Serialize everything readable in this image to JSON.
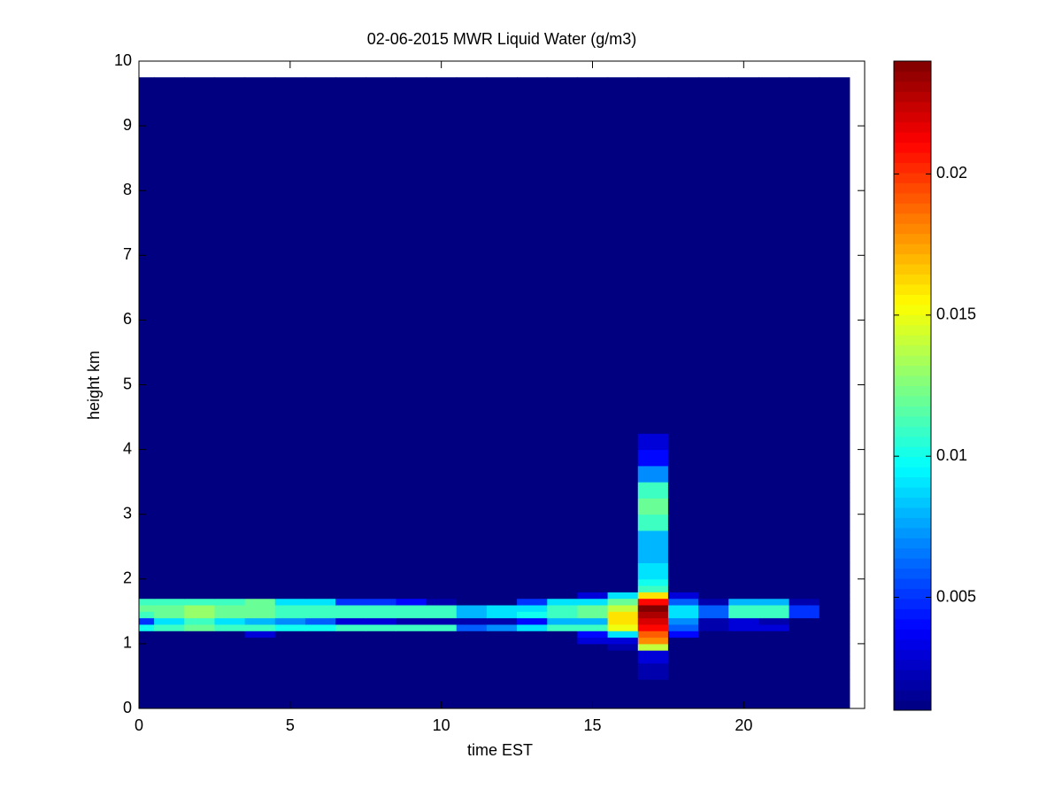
{
  "chart_data": {
    "type": "heatmap",
    "title": "02-06-2015 MWR Liquid Water (g/m3)",
    "xlabel": "time EST",
    "ylabel": "height km",
    "xlim": [
      0,
      24
    ],
    "ylim": [
      0,
      10
    ],
    "xticks": [
      0,
      5,
      10,
      15,
      20
    ],
    "yticks": [
      0,
      1,
      2,
      3,
      4,
      5,
      6,
      7,
      8,
      9,
      10
    ],
    "x": [
      0,
      0.5,
      1.5,
      2.5,
      3.5,
      4.5,
      5.5,
      6.5,
      7.5,
      8.5,
      9.5,
      10.5,
      11.5,
      12.5,
      13.5,
      14.5,
      15.5,
      16.5,
      17.5,
      18.5,
      19.5,
      20.5,
      21.5,
      22.5,
      23.5
    ],
    "y": [
      0,
      0.45,
      0.6,
      0.7,
      0.8,
      0.9,
      1.0,
      1.1,
      1.2,
      1.3,
      1.4,
      1.5,
      1.6,
      1.7,
      1.8,
      1.9,
      2.0,
      2.25,
      2.5,
      2.75,
      3.0,
      3.25,
      3.5,
      3.75,
      4.0,
      4.25,
      9.75
    ],
    "colormap": "jet",
    "clim": [
      0.001,
      0.024
    ],
    "colorbar_ticks": [
      0.005,
      0.01,
      0.015,
      0.02
    ],
    "z": [
      [
        0.001,
        0.001,
        0.001,
        0.001,
        0.001,
        0.001,
        0.001,
        0.001,
        0.001,
        0.001,
        0.001,
        0.001,
        0.001,
        0.001,
        0.001,
        0.001,
        0.001,
        0.001,
        0.001,
        0.001,
        0.001,
        0.001,
        0.001,
        0.001
      ],
      [
        0.001,
        0.001,
        0.001,
        0.001,
        0.001,
        0.001,
        0.001,
        0.001,
        0.001,
        0.001,
        0.001,
        0.001,
        0.001,
        0.001,
        0.001,
        0.001,
        0.001,
        0.002,
        0.001,
        0.001,
        0.001,
        0.001,
        0.001,
        0.001
      ],
      [
        0.001,
        0.001,
        0.001,
        0.001,
        0.001,
        0.001,
        0.001,
        0.001,
        0.001,
        0.001,
        0.001,
        0.001,
        0.001,
        0.001,
        0.001,
        0.001,
        0.001,
        0.002,
        0.001,
        0.001,
        0.001,
        0.001,
        0.001,
        0.001
      ],
      [
        0.001,
        0.001,
        0.001,
        0.001,
        0.001,
        0.001,
        0.001,
        0.001,
        0.001,
        0.001,
        0.001,
        0.001,
        0.001,
        0.001,
        0.001,
        0.001,
        0.001,
        0.003,
        0.001,
        0.001,
        0.001,
        0.001,
        0.001,
        0.001
      ],
      [
        0.001,
        0.001,
        0.001,
        0.001,
        0.001,
        0.001,
        0.001,
        0.001,
        0.001,
        0.001,
        0.001,
        0.001,
        0.001,
        0.001,
        0.001,
        0.001,
        0.001,
        0.003,
        0.001,
        0.001,
        0.001,
        0.001,
        0.001,
        0.001
      ],
      [
        0.001,
        0.001,
        0.001,
        0.001,
        0.001,
        0.001,
        0.001,
        0.001,
        0.001,
        0.001,
        0.001,
        0.001,
        0.001,
        0.001,
        0.001,
        0.001,
        0.002,
        0.014,
        0.001,
        0.001,
        0.001,
        0.001,
        0.001,
        0.001
      ],
      [
        0.001,
        0.001,
        0.001,
        0.001,
        0.001,
        0.001,
        0.001,
        0.001,
        0.001,
        0.001,
        0.001,
        0.001,
        0.001,
        0.001,
        0.001,
        0.003,
        0.003,
        0.018,
        0.001,
        0.001,
        0.001,
        0.001,
        0.001,
        0.001
      ],
      [
        0.001,
        0.001,
        0.001,
        0.001,
        0.003,
        0.001,
        0.001,
        0.001,
        0.001,
        0.001,
        0.001,
        0.001,
        0.001,
        0.001,
        0.001,
        0.004,
        0.009,
        0.019,
        0.004,
        0.001,
        0.001,
        0.001,
        0.001,
        0.001
      ],
      [
        0.01,
        0.011,
        0.012,
        0.011,
        0.011,
        0.01,
        0.01,
        0.011,
        0.011,
        0.011,
        0.011,
        0.006,
        0.007,
        0.009,
        0.011,
        0.011,
        0.015,
        0.021,
        0.006,
        0.002,
        0.003,
        0.003,
        0.001,
        0.001
      ],
      [
        0.005,
        0.009,
        0.011,
        0.009,
        0.008,
        0.007,
        0.006,
        0.003,
        0.003,
        0.002,
        0.002,
        0.002,
        0.002,
        0.004,
        0.008,
        0.008,
        0.016,
        0.022,
        0.007,
        0.002,
        0.003,
        0.002,
        0.001,
        0.001
      ],
      [
        0.011,
        0.012,
        0.013,
        0.012,
        0.012,
        0.011,
        0.011,
        0.011,
        0.011,
        0.011,
        0.011,
        0.008,
        0.009,
        0.01,
        0.011,
        0.012,
        0.016,
        0.023,
        0.009,
        0.006,
        0.011,
        0.011,
        0.005,
        0.001
      ],
      [
        0.012,
        0.012,
        0.013,
        0.012,
        0.012,
        0.011,
        0.011,
        0.011,
        0.011,
        0.011,
        0.011,
        0.008,
        0.009,
        0.009,
        0.011,
        0.012,
        0.014,
        0.024,
        0.009,
        0.006,
        0.011,
        0.011,
        0.005,
        0.001
      ],
      [
        0.011,
        0.011,
        0.011,
        0.011,
        0.012,
        0.009,
        0.009,
        0.005,
        0.005,
        0.004,
        0.002,
        0.001,
        0.001,
        0.005,
        0.009,
        0.009,
        0.012,
        0.021,
        0.006,
        0.002,
        0.008,
        0.008,
        0.002,
        0.001
      ],
      [
        0.001,
        0.001,
        0.001,
        0.001,
        0.001,
        0.001,
        0.001,
        0.001,
        0.001,
        0.001,
        0.001,
        0.001,
        0.001,
        0.001,
        0.001,
        0.003,
        0.009,
        0.016,
        0.003,
        0.001,
        0.001,
        0.001,
        0.001,
        0.001
      ],
      [
        0.001,
        0.001,
        0.001,
        0.001,
        0.001,
        0.001,
        0.001,
        0.001,
        0.001,
        0.001,
        0.001,
        0.001,
        0.001,
        0.001,
        0.001,
        0.001,
        0.001,
        0.011,
        0.001,
        0.001,
        0.001,
        0.001,
        0.001,
        0.001
      ],
      [
        0.001,
        0.001,
        0.001,
        0.001,
        0.001,
        0.001,
        0.001,
        0.001,
        0.001,
        0.001,
        0.001,
        0.001,
        0.001,
        0.001,
        0.001,
        0.001,
        0.001,
        0.01,
        0.001,
        0.001,
        0.001,
        0.001,
        0.001,
        0.001
      ],
      [
        0.001,
        0.001,
        0.001,
        0.001,
        0.001,
        0.001,
        0.001,
        0.001,
        0.001,
        0.001,
        0.001,
        0.001,
        0.001,
        0.001,
        0.001,
        0.001,
        0.001,
        0.009,
        0.001,
        0.001,
        0.001,
        0.001,
        0.001,
        0.001
      ],
      [
        0.001,
        0.001,
        0.001,
        0.001,
        0.001,
        0.001,
        0.001,
        0.001,
        0.001,
        0.001,
        0.001,
        0.001,
        0.001,
        0.001,
        0.001,
        0.001,
        0.001,
        0.008,
        0.001,
        0.001,
        0.001,
        0.001,
        0.001,
        0.001
      ],
      [
        0.001,
        0.001,
        0.001,
        0.001,
        0.001,
        0.001,
        0.001,
        0.001,
        0.001,
        0.001,
        0.001,
        0.001,
        0.001,
        0.001,
        0.001,
        0.001,
        0.001,
        0.008,
        0.001,
        0.001,
        0.001,
        0.001,
        0.001,
        0.001
      ],
      [
        0.001,
        0.001,
        0.001,
        0.001,
        0.001,
        0.001,
        0.001,
        0.001,
        0.001,
        0.001,
        0.001,
        0.001,
        0.001,
        0.001,
        0.001,
        0.001,
        0.001,
        0.011,
        0.001,
        0.001,
        0.001,
        0.001,
        0.001,
        0.001
      ],
      [
        0.001,
        0.001,
        0.001,
        0.001,
        0.001,
        0.001,
        0.001,
        0.001,
        0.001,
        0.001,
        0.001,
        0.001,
        0.001,
        0.001,
        0.001,
        0.001,
        0.001,
        0.012,
        0.001,
        0.001,
        0.001,
        0.001,
        0.001,
        0.001
      ],
      [
        0.001,
        0.001,
        0.001,
        0.001,
        0.001,
        0.001,
        0.001,
        0.001,
        0.001,
        0.001,
        0.001,
        0.001,
        0.001,
        0.001,
        0.001,
        0.001,
        0.001,
        0.011,
        0.001,
        0.001,
        0.001,
        0.001,
        0.001,
        0.001
      ],
      [
        0.001,
        0.001,
        0.001,
        0.001,
        0.001,
        0.001,
        0.001,
        0.001,
        0.001,
        0.001,
        0.001,
        0.001,
        0.001,
        0.001,
        0.001,
        0.001,
        0.001,
        0.007,
        0.001,
        0.001,
        0.001,
        0.001,
        0.001,
        0.001
      ],
      [
        0.001,
        0.001,
        0.001,
        0.001,
        0.001,
        0.001,
        0.001,
        0.001,
        0.001,
        0.001,
        0.001,
        0.001,
        0.001,
        0.001,
        0.001,
        0.001,
        0.001,
        0.004,
        0.001,
        0.001,
        0.001,
        0.001,
        0.001,
        0.001
      ],
      [
        0.001,
        0.001,
        0.001,
        0.001,
        0.001,
        0.001,
        0.001,
        0.001,
        0.001,
        0.001,
        0.001,
        0.001,
        0.001,
        0.001,
        0.001,
        0.001,
        0.001,
        0.003,
        0.001,
        0.001,
        0.001,
        0.001,
        0.001,
        0.001
      ],
      [
        0.001,
        0.001,
        0.001,
        0.001,
        0.001,
        0.001,
        0.001,
        0.001,
        0.001,
        0.001,
        0.001,
        0.001,
        0.001,
        0.001,
        0.001,
        0.001,
        0.001,
        0.001,
        0.001,
        0.001,
        0.001,
        0.001,
        0.001,
        0.001
      ]
    ]
  }
}
